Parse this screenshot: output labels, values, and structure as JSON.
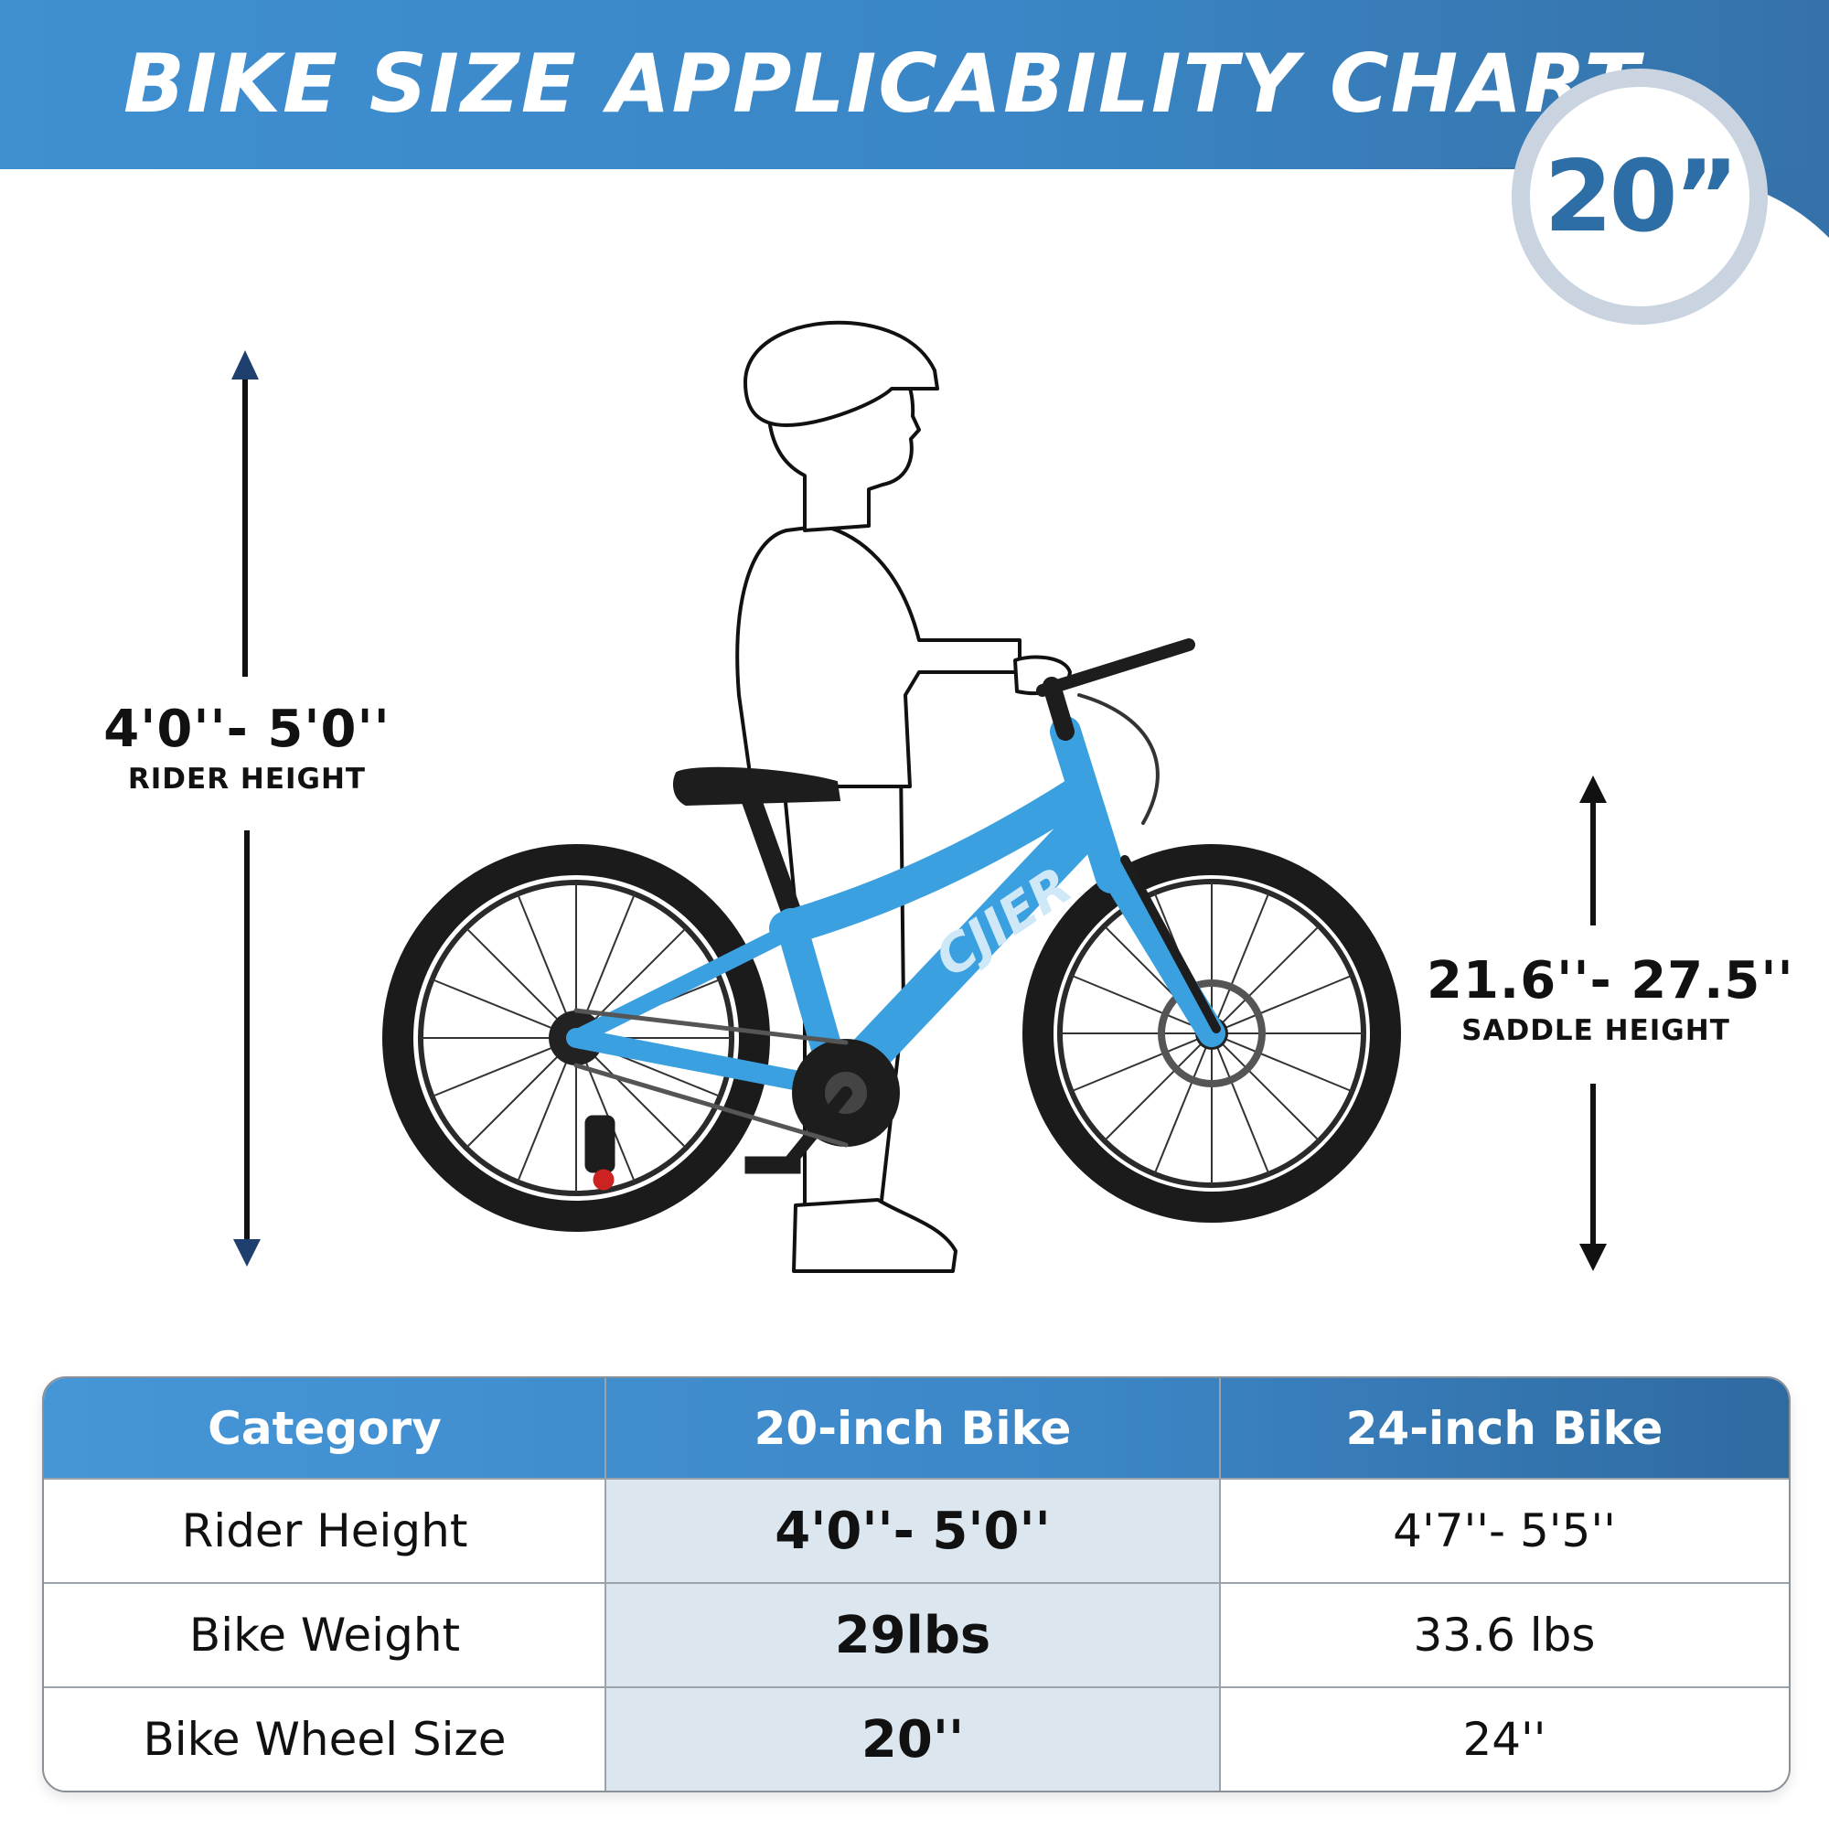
{
  "header": {
    "title": "BIKE SIZE APPLICABILITY CHART"
  },
  "badge": {
    "size": "20”"
  },
  "rider_height": {
    "value": "4'0''-  5'0''",
    "label": "RIDER HEIGHT"
  },
  "saddle_height": {
    "value": "21.6''-  27.5''",
    "label": "SADDLE HEIGHT"
  },
  "bike": {
    "brand": "CJIER"
  },
  "table": {
    "headers": [
      "Category",
      "20-inch Bike",
      "24-inch Bike"
    ],
    "rows": [
      [
        "Rider Height",
        "4'0''- 5'0''",
        "4'7''- 5'5''"
      ],
      [
        "Bike Weight",
        "29lbs",
        "33.6 lbs"
      ],
      [
        "Bike Wheel Size",
        "20''",
        "24''"
      ]
    ]
  },
  "colors": {
    "header_blue": "#3a86c6",
    "badge_text": "#2d6ea6",
    "bike_blue": "#3aa0e0",
    "highlight_column": "#dce6ee"
  }
}
